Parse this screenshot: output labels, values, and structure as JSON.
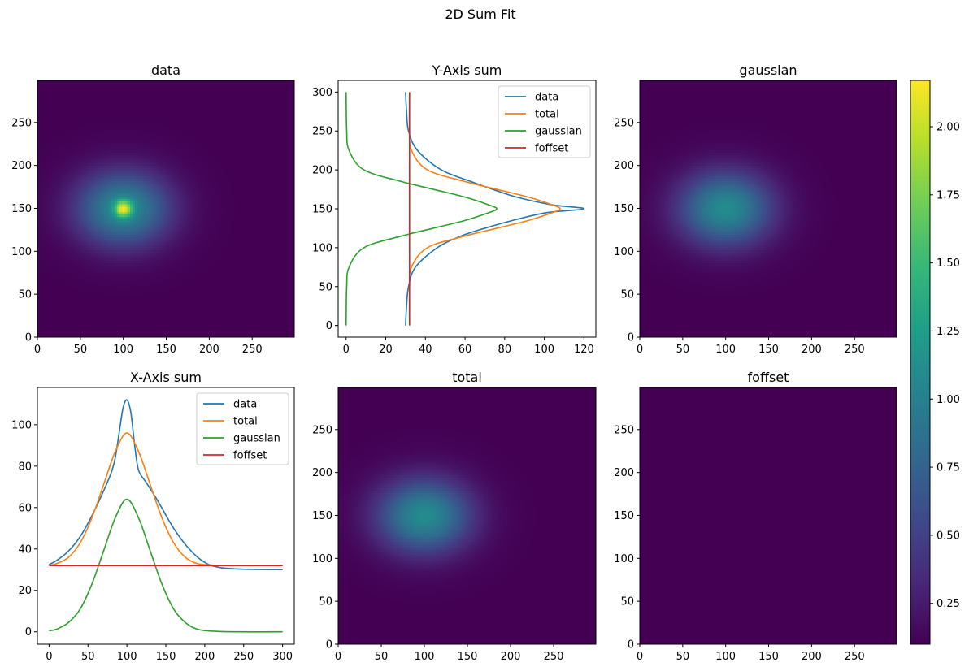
{
  "figure": {
    "title": "2D Sum Fit"
  },
  "colors": {
    "data": "#1f77b4",
    "total": "#ff7f0e",
    "gaussian": "#2ca02c",
    "foffset": "#d62728",
    "background": "#440154"
  },
  "chart_data": [
    {
      "type": "heatmap",
      "title": "data",
      "xlim": [
        0,
        299
      ],
      "ylim": [
        0,
        299
      ],
      "xticks": [
        0,
        50,
        100,
        150,
        200,
        250
      ],
      "yticks": [
        0,
        50,
        100,
        150,
        200,
        250
      ],
      "colormap": "viridis",
      "components": {
        "offset": 0.1,
        "broad_peak": {
          "center": [
            100,
            150
          ],
          "amplitude": 1.0,
          "sigma": [
            38,
            30
          ]
        },
        "narrow_peak": {
          "center": [
            100,
            150
          ],
          "amplitude": 1.07,
          "sigma": [
            7,
            7
          ]
        }
      }
    },
    {
      "type": "line",
      "title": "Y-Axis sum",
      "xlim": [
        -4,
        126
      ],
      "ylim": [
        -15,
        315
      ],
      "xticks": [
        0,
        20,
        40,
        60,
        80,
        100,
        120
      ],
      "yticks": [
        0,
        50,
        100,
        150,
        200,
        250,
        300
      ],
      "legend": "top-right",
      "series": [
        {
          "name": "data",
          "y": [
            0,
            25,
            50,
            75,
            100,
            115,
            125,
            135,
            145,
            150,
            155,
            165,
            175,
            185,
            200,
            225,
            250,
            275,
            300
          ],
          "x": [
            30.0,
            30.5,
            31.5,
            35.0,
            46.0,
            58.0,
            70.0,
            84.0,
            101.0,
            120.0,
            104.0,
            86.0,
            74.0,
            63.0,
            48.0,
            36.0,
            31.5,
            30.5,
            30.0
          ]
        },
        {
          "name": "total",
          "y": [
            0,
            50,
            75,
            100,
            115,
            125,
            135,
            145,
            150,
            155,
            165,
            175,
            185,
            200,
            225,
            250,
            300
          ],
          "x": [
            32.0,
            32.0,
            33.0,
            41.0,
            60.0,
            76.0,
            92.0,
            104.0,
            108.0,
            104.0,
            92.0,
            76.0,
            60.0,
            41.0,
            33.0,
            32.0,
            32.0
          ]
        },
        {
          "name": "gaussian",
          "y": [
            0,
            50,
            75,
            100,
            115,
            125,
            135,
            145,
            150,
            155,
            165,
            175,
            185,
            200,
            225,
            250,
            300
          ],
          "x": [
            0.0,
            0.3,
            1.5,
            9.0,
            28.0,
            44.0,
            60.0,
            72.0,
            76.0,
            72.0,
            60.0,
            44.0,
            28.0,
            9.0,
            1.5,
            0.3,
            0.0
          ]
        },
        {
          "name": "foffset",
          "y": [
            0,
            300
          ],
          "x": [
            32.0,
            32.0
          ]
        }
      ]
    },
    {
      "type": "heatmap",
      "title": "gaussian",
      "xlim": [
        0,
        299
      ],
      "ylim": [
        0,
        299
      ],
      "xticks": [
        0,
        50,
        100,
        150,
        200,
        250
      ],
      "yticks": [
        0,
        50,
        100,
        150,
        200,
        250
      ],
      "colormap": "viridis",
      "components": {
        "offset": 0.1,
        "peak": {
          "center": [
            100,
            150
          ],
          "amplitude": 1.0,
          "sigma": [
            38,
            30
          ]
        }
      }
    },
    {
      "type": "line",
      "title": "X-Axis sum",
      "xlim": [
        -15,
        315
      ],
      "ylim": [
        -6,
        118
      ],
      "xticks": [
        0,
        50,
        100,
        150,
        200,
        250,
        300
      ],
      "yticks": [
        0,
        20,
        40,
        60,
        80,
        100
      ],
      "legend": "top-right",
      "series": [
        {
          "name": "data",
          "x": [
            0,
            10,
            25,
            40,
            55,
            70,
            80,
            85,
            90,
            95,
            100,
            105,
            110,
            115,
            125,
            140,
            160,
            180,
            200,
            220,
            250,
            300
          ],
          "y": [
            32.5,
            34.5,
            39.0,
            46.0,
            56.0,
            68.0,
            77.0,
            84.0,
            96.0,
            108.0,
            112.0,
            106.0,
            90.0,
            78.0,
            72.0,
            63.0,
            50.0,
            40.0,
            33.5,
            31.0,
            30.2,
            30.0
          ]
        },
        {
          "name": "total",
          "x": [
            0,
            10,
            25,
            40,
            55,
            70,
            85,
            100,
            115,
            130,
            145,
            160,
            175,
            190,
            210,
            240,
            300
          ],
          "y": [
            32.0,
            33.0,
            36.0,
            43.0,
            55.0,
            71.0,
            87.0,
            96.0,
            87.0,
            71.0,
            55.0,
            43.0,
            36.0,
            33.0,
            32.2,
            32.0,
            32.0
          ]
        },
        {
          "name": "gaussian",
          "x": [
            0,
            10,
            25,
            40,
            55,
            70,
            85,
            100,
            115,
            130,
            145,
            160,
            175,
            190,
            210,
            240,
            300
          ],
          "y": [
            0.5,
            1.3,
            4.5,
            11.0,
            23.0,
            39.0,
            55.0,
            64.0,
            55.0,
            39.0,
            23.0,
            11.0,
            4.5,
            1.3,
            0.3,
            0.0,
            0.0
          ]
        },
        {
          "name": "foffset",
          "x": [
            0,
            300
          ],
          "y": [
            32.0,
            32.0
          ]
        }
      ]
    },
    {
      "type": "heatmap",
      "title": "total",
      "xlim": [
        0,
        299
      ],
      "ylim": [
        0,
        299
      ],
      "xticks": [
        0,
        50,
        100,
        150,
        200,
        250
      ],
      "yticks": [
        0,
        50,
        100,
        150,
        200,
        250
      ],
      "colormap": "viridis",
      "components": {
        "offset": 0.1,
        "peak": {
          "center": [
            100,
            150
          ],
          "amplitude": 1.0,
          "sigma": [
            38,
            30
          ]
        }
      }
    },
    {
      "type": "heatmap",
      "title": "foffset",
      "xlim": [
        0,
        299
      ],
      "ylim": [
        0,
        299
      ],
      "xticks": [
        0,
        50,
        100,
        150,
        200,
        250
      ],
      "yticks": [
        0,
        50,
        100,
        150,
        200,
        250
      ],
      "colormap": "viridis",
      "components": {
        "offset": 0.1
      }
    },
    {
      "type": "colorbar",
      "colormap": "viridis",
      "range": [
        0.1,
        2.17
      ],
      "ticks": [
        "0.25",
        "0.50",
        "0.75",
        "1.00",
        "1.25",
        "1.50",
        "1.75",
        "2.00"
      ]
    }
  ]
}
